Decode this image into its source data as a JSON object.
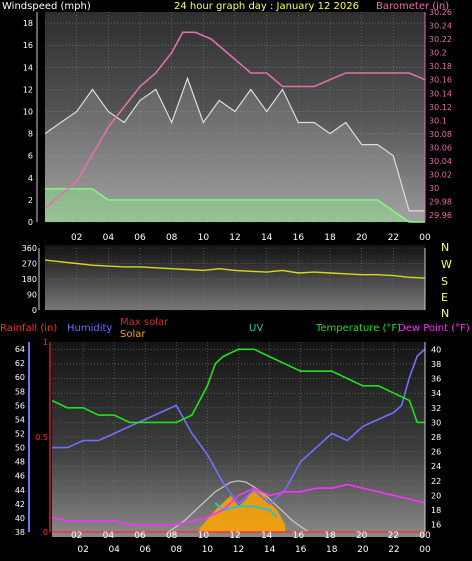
{
  "header": {
    "windspeed_label": "Windspeed (mph)",
    "title": "24 hour graph day : January 12 2026",
    "barometer_label": "Barometer (in)"
  },
  "legend2": {
    "rainfall_label": "Rainfall (in)",
    "humidity_label": "Humidity",
    "max_solar_label": "Max solar",
    "solar_label": "Solar",
    "uv_label": "UV",
    "temperature_label": "Temperature (°F)",
    "dewpoint_label": "Dew Point (°F)"
  },
  "compass": [
    "N",
    "W",
    "S",
    "E",
    "N"
  ],
  "colors": {
    "windspeed_label": "#ffffff",
    "title": "#ffff66",
    "barometer": "#e070b0",
    "gust": "#dddddd",
    "wind_avg": "#80ff80",
    "direction": "#d8d820",
    "rainfall": "#ff3030",
    "humidity": "#7070ff",
    "max_solar": "#cc3030",
    "solar": "#ffa500",
    "uv": "#30c0c0",
    "temperature": "#20e020",
    "dewpoint": "#ff30ff"
  },
  "chart_data": [
    {
      "type": "line",
      "title": "24 hour graph day : January 12 2026",
      "x_ticks": [
        "02",
        "04",
        "06",
        "08",
        "10",
        "12",
        "14",
        "16",
        "18",
        "20",
        "22",
        "00"
      ],
      "xlim_hours": [
        0,
        24
      ],
      "y_left": {
        "label": "Windspeed (mph)",
        "ticks": [
          "0",
          "2",
          "4",
          "6",
          "8",
          "10",
          "12",
          "14",
          "16",
          "18"
        ],
        "ylim": [
          0,
          19
        ]
      },
      "y_right": {
        "label": "Barometer (in)",
        "ticks": [
          "29.96",
          "29.98",
          "30",
          "30.02",
          "30.04",
          "30.06",
          "30.08",
          "30.1",
          "30.12",
          "30.14",
          "30.16",
          "30.18",
          "30.2",
          "30.22",
          "30.24",
          "30.26"
        ],
        "ylim": [
          29.95,
          30.26
        ]
      },
      "series": [
        {
          "name": "Barometer (in)",
          "axis": "right",
          "x": [
            0,
            1,
            2,
            3,
            4,
            5,
            6,
            7,
            8,
            8.7,
            9.5,
            10.5,
            11.5,
            12.5,
            13,
            13.5,
            14,
            14.5,
            15,
            15.5,
            16,
            17,
            18,
            19,
            20,
            21,
            22,
            23,
            24
          ],
          "y": [
            29.97,
            29.99,
            30.01,
            30.05,
            30.09,
            30.12,
            30.15,
            30.17,
            30.2,
            30.23,
            30.23,
            30.22,
            30.2,
            30.18,
            30.17,
            30.17,
            30.17,
            30.16,
            30.15,
            30.15,
            30.15,
            30.15,
            30.16,
            30.17,
            30.17,
            30.17,
            30.17,
            30.17,
            30.16
          ]
        },
        {
          "name": "Wind gust",
          "x": [
            0,
            1,
            2,
            3,
            4,
            5,
            6,
            7,
            8,
            9,
            10,
            11,
            12,
            13,
            14,
            15,
            16,
            17,
            18,
            19,
            20,
            21,
            22,
            23,
            24
          ],
          "y": [
            8,
            9,
            10,
            12,
            10,
            9,
            11,
            12,
            9,
            13,
            9,
            11,
            10,
            12,
            10,
            12,
            9,
            9,
            8,
            9,
            7,
            7,
            6,
            1,
            1
          ]
        },
        {
          "name": "Wind speed",
          "x": [
            0,
            1,
            2,
            3,
            4,
            5,
            6,
            7,
            8,
            9,
            10,
            11,
            12,
            13,
            14,
            15,
            16,
            17,
            18,
            19,
            20,
            21,
            22,
            23,
            24
          ],
          "y": [
            3,
            3,
            3,
            3,
            2,
            2,
            2,
            2,
            2,
            2,
            2,
            2,
            2,
            2,
            2,
            2,
            2,
            2,
            2,
            2,
            2,
            2,
            1,
            0,
            0
          ]
        }
      ]
    },
    {
      "type": "line",
      "x_ticks": [
        "02",
        "04",
        "06",
        "08",
        "10",
        "12",
        "14",
        "16",
        "18",
        "20",
        "22",
        "00"
      ],
      "xlim_hours": [
        0,
        24
      ],
      "y_left": {
        "ticks": [
          "0",
          "90",
          "180",
          "270",
          "360"
        ],
        "ylim": [
          0,
          360
        ]
      },
      "series": [
        {
          "name": "Wind direction",
          "x": [
            0,
            1,
            2,
            3,
            4,
            5,
            6,
            7,
            8,
            9,
            10,
            11,
            12,
            13,
            14,
            15,
            16,
            17,
            18,
            19,
            20,
            21,
            22,
            23,
            24
          ],
          "y": [
            290,
            280,
            270,
            260,
            255,
            250,
            250,
            245,
            240,
            235,
            230,
            240,
            230,
            225,
            220,
            230,
            215,
            220,
            215,
            210,
            205,
            205,
            200,
            190,
            185
          ]
        }
      ]
    },
    {
      "type": "line",
      "x_ticks": [
        "02",
        "04",
        "06",
        "08",
        "10",
        "12",
        "14",
        "16",
        "18",
        "20",
        "22",
        "00"
      ],
      "xlim_hours": [
        0,
        24
      ],
      "y_rain": {
        "label": "Rainfall (in)",
        "ticks": [
          "0",
          "0.5",
          "1"
        ],
        "ylim": [
          0,
          1
        ]
      },
      "y_humidity": {
        "label": "Humidity",
        "ticks": [
          "38",
          "40",
          "42",
          "44",
          "46",
          "48",
          "50",
          "52",
          "54",
          "56",
          "58",
          "60",
          "62",
          "64"
        ],
        "ylim": [
          38,
          65
        ]
      },
      "y_temp": {
        "label": "Temperature (°F)",
        "ticks": [
          "16",
          "18",
          "20",
          "22",
          "24",
          "26",
          "28",
          "30",
          "32",
          "34",
          "36",
          "38",
          "40"
        ],
        "ylim": [
          15,
          41
        ]
      },
      "series": [
        {
          "name": "Rainfall (in)",
          "axis": "rain",
          "x": [
            0,
            24
          ],
          "y": [
            0,
            0
          ]
        },
        {
          "name": "Humidity",
          "axis": "humidity",
          "x": [
            0,
            1,
            2,
            3,
            4,
            5,
            6,
            7,
            8,
            9,
            10,
            11,
            12,
            13,
            14,
            15,
            16,
            17,
            18,
            19,
            20,
            21,
            22,
            22.5,
            23,
            23.5,
            24
          ],
          "y": [
            50,
            50,
            51,
            51,
            52,
            53,
            54,
            55,
            56,
            52,
            49,
            45,
            42,
            44,
            42,
            44,
            48,
            50,
            52,
            51,
            53,
            54,
            55,
            56,
            60,
            63,
            64
          ]
        },
        {
          "name": "Temperature (°F)",
          "axis": "temp",
          "x": [
            0,
            1,
            2,
            3,
            4,
            5,
            6,
            7,
            8,
            9,
            10,
            10.5,
            11,
            12,
            13,
            14,
            15,
            16,
            17,
            18,
            19,
            20,
            21,
            22,
            23,
            23.5,
            24
          ],
          "y": [
            33,
            32,
            32,
            31,
            31,
            30,
            30,
            30,
            30,
            31,
            35,
            38,
            39,
            40,
            40,
            39,
            38,
            37,
            37,
            37,
            36,
            35,
            35,
            34,
            33,
            30,
            30
          ]
        },
        {
          "name": "Dew Point (°F)",
          "axis": "temp",
          "x": [
            0,
            1,
            2,
            3,
            4,
            5,
            6,
            7,
            8,
            9,
            10,
            11,
            12,
            13,
            14,
            15,
            16,
            17,
            18,
            19,
            20,
            21,
            22,
            23,
            24
          ],
          "y": [
            17,
            16.5,
            16.5,
            16.5,
            16.5,
            16,
            16,
            16,
            16,
            16.5,
            17,
            18,
            20,
            21,
            20,
            20.5,
            20.5,
            21,
            21,
            21.5,
            21,
            20.5,
            20,
            19.5,
            19
          ]
        },
        {
          "name": "Max solar",
          "axis": "temp",
          "x": [
            7.5,
            8.5,
            9.5,
            10.5,
            11.5,
            12,
            12.5,
            13.5,
            14.5,
            15.5,
            16.5
          ],
          "y": [
            15,
            16.5,
            18.5,
            20.5,
            21.8,
            22,
            21.8,
            20.5,
            18.5,
            16.5,
            15
          ]
        },
        {
          "name": "Solar",
          "axis": "temp",
          "x": [
            9.5,
            10.5,
            11,
            11.5,
            12,
            12.5,
            13,
            13.5,
            14,
            14.5,
            15
          ],
          "y": [
            15.5,
            18,
            19,
            20,
            18.5,
            19.5,
            21,
            20.5,
            19,
            18,
            16
          ]
        },
        {
          "name": "UV",
          "axis": "temp",
          "x": [
            10.5,
            11,
            12,
            13,
            14,
            14.5
          ],
          "y": [
            19,
            18,
            18.5,
            18.5,
            18,
            17
          ]
        }
      ]
    }
  ]
}
